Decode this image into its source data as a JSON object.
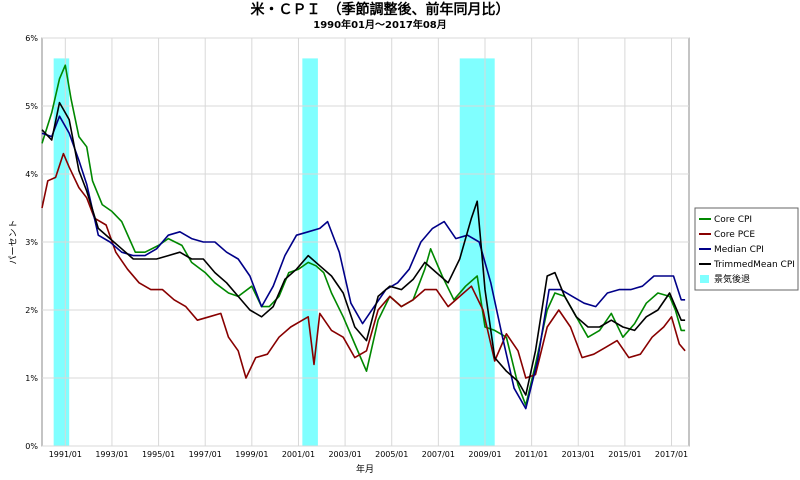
{
  "chart_data": {
    "type": "line",
    "title": "米・ＣＰＩ　（季節調整後、前年同月比）",
    "subtitle": "1990年01月～2017年08月",
    "xlabel": "年月",
    "ylabel": "パーセント",
    "xlim": [
      1990.0,
      2017.75
    ],
    "ylim": [
      0,
      6
    ],
    "yticks": [
      "0%",
      "1%",
      "2%",
      "3%",
      "4%",
      "5%",
      "6%"
    ],
    "xticks": [
      "1991/01",
      "1993/01",
      "1995/01",
      "1997/01",
      "1999/01",
      "2001/01",
      "2003/01",
      "2005/01",
      "2007/01",
      "2009/01",
      "2011/01",
      "2013/01",
      "2015/01",
      "2017/01"
    ],
    "grid": true,
    "legend_position": "right",
    "recessions": {
      "name": "景気後退",
      "color": "#80ffff",
      "periods": [
        [
          "1990/07",
          "1991/03"
        ],
        [
          "2001/03",
          "2001/11"
        ],
        [
          "2007/12",
          "2009/06"
        ]
      ]
    },
    "series": [
      {
        "name": "Core CPI",
        "color": "#008800",
        "points": [
          [
            "1990/01",
            4.45
          ],
          [
            "1990/06",
            4.9
          ],
          [
            "1990/10",
            5.4
          ],
          [
            "1991/01",
            5.6
          ],
          [
            "1991/04",
            5.1
          ],
          [
            "1991/08",
            4.55
          ],
          [
            "1991/12",
            4.4
          ],
          [
            "1992/03",
            3.9
          ],
          [
            "1992/08",
            3.55
          ],
          [
            "1993/01",
            3.45
          ],
          [
            "1993/06",
            3.3
          ],
          [
            "1994/01",
            2.85
          ],
          [
            "1994/06",
            2.85
          ],
          [
            "1995/01",
            2.95
          ],
          [
            "1995/06",
            3.05
          ],
          [
            "1996/01",
            2.95
          ],
          [
            "1996/06",
            2.7
          ],
          [
            "1997/01",
            2.55
          ],
          [
            "1997/06",
            2.4
          ],
          [
            "1998/01",
            2.25
          ],
          [
            "1998/06",
            2.2
          ],
          [
            "1999/01",
            2.35
          ],
          [
            "1999/06",
            2.05
          ],
          [
            "1999/10",
            2.05
          ],
          [
            "2000/03",
            2.2
          ],
          [
            "2000/08",
            2.55
          ],
          [
            "2001/01",
            2.6
          ],
          [
            "2001/06",
            2.7
          ],
          [
            "2001/10",
            2.65
          ],
          [
            "2002/02",
            2.55
          ],
          [
            "2002/06",
            2.25
          ],
          [
            "2002/12",
            1.9
          ],
          [
            "2003/06",
            1.5
          ],
          [
            "2003/12",
            1.1
          ],
          [
            "2004/06",
            1.85
          ],
          [
            "2004/12",
            2.2
          ],
          [
            "2005/06",
            2.05
          ],
          [
            "2005/12",
            2.15
          ],
          [
            "2006/06",
            2.6
          ],
          [
            "2006/09",
            2.9
          ],
          [
            "2007/03",
            2.5
          ],
          [
            "2007/09",
            2.15
          ],
          [
            "2008/03",
            2.35
          ],
          [
            "2008/09",
            2.5
          ],
          [
            "2009/01",
            1.75
          ],
          [
            "2009/06",
            1.7
          ],
          [
            "2009/12",
            1.6
          ],
          [
            "2010/06",
            0.9
          ],
          [
            "2010/10",
            0.6
          ],
          [
            "2011/03",
            1.2
          ],
          [
            "2011/09",
            2.0
          ],
          [
            "2012/01",
            2.25
          ],
          [
            "2012/06",
            2.2
          ],
          [
            "2012/12",
            1.9
          ],
          [
            "2013/06",
            1.6
          ],
          [
            "2013/12",
            1.7
          ],
          [
            "2014/06",
            1.95
          ],
          [
            "2014/12",
            1.6
          ],
          [
            "2015/06",
            1.8
          ],
          [
            "2015/12",
            2.1
          ],
          [
            "2016/06",
            2.25
          ],
          [
            "2016/12",
            2.2
          ],
          [
            "2017/03",
            2.0
          ],
          [
            "2017/06",
            1.7
          ],
          [
            "2017/08",
            1.7
          ]
        ]
      },
      {
        "name": "Core PCE",
        "color": "#880000",
        "points": [
          [
            "1990/01",
            3.5
          ],
          [
            "1990/04",
            3.9
          ],
          [
            "1990/08",
            3.95
          ],
          [
            "1990/12",
            4.3
          ],
          [
            "1991/03",
            4.1
          ],
          [
            "1991/08",
            3.8
          ],
          [
            "1991/12",
            3.65
          ],
          [
            "1992/04",
            3.35
          ],
          [
            "1992/10",
            3.25
          ],
          [
            "1993/03",
            2.85
          ],
          [
            "1993/09",
            2.6
          ],
          [
            "1994/03",
            2.4
          ],
          [
            "1994/09",
            2.3
          ],
          [
            "1995/03",
            2.3
          ],
          [
            "1995/09",
            2.15
          ],
          [
            "1996/03",
            2.05
          ],
          [
            "1996/09",
            1.85
          ],
          [
            "1997/03",
            1.9
          ],
          [
            "1997/09",
            1.95
          ],
          [
            "1998/01",
            1.6
          ],
          [
            "1998/06",
            1.4
          ],
          [
            "1998/10",
            1.0
          ],
          [
            "1999/03",
            1.3
          ],
          [
            "1999/09",
            1.35
          ],
          [
            "2000/03",
            1.6
          ],
          [
            "2000/09",
            1.75
          ],
          [
            "2001/03",
            1.85
          ],
          [
            "2001/06",
            1.9
          ],
          [
            "2001/09",
            1.2
          ],
          [
            "2001/12",
            1.95
          ],
          [
            "2002/06",
            1.7
          ],
          [
            "2002/12",
            1.6
          ],
          [
            "2003/06",
            1.3
          ],
          [
            "2003/12",
            1.4
          ],
          [
            "2004/06",
            2.0
          ],
          [
            "2004/12",
            2.2
          ],
          [
            "2005/06",
            2.05
          ],
          [
            "2005/12",
            2.15
          ],
          [
            "2006/06",
            2.3
          ],
          [
            "2006/12",
            2.3
          ],
          [
            "2007/06",
            2.05
          ],
          [
            "2007/12",
            2.2
          ],
          [
            "2008/06",
            2.35
          ],
          [
            "2008/12",
            2.0
          ],
          [
            "2009/06",
            1.25
          ],
          [
            "2009/12",
            1.65
          ],
          [
            "2010/06",
            1.4
          ],
          [
            "2010/10",
            1.0
          ],
          [
            "2011/03",
            1.05
          ],
          [
            "2011/09",
            1.75
          ],
          [
            "2012/03",
            2.0
          ],
          [
            "2012/09",
            1.75
          ],
          [
            "2013/03",
            1.3
          ],
          [
            "2013/09",
            1.35
          ],
          [
            "2014/03",
            1.45
          ],
          [
            "2014/09",
            1.55
          ],
          [
            "2015/03",
            1.3
          ],
          [
            "2015/09",
            1.35
          ],
          [
            "2016/03",
            1.6
          ],
          [
            "2016/09",
            1.75
          ],
          [
            "2017/01",
            1.9
          ],
          [
            "2017/05",
            1.5
          ],
          [
            "2017/08",
            1.4
          ]
        ]
      },
      {
        "name": "Median CPI",
        "color": "#000088",
        "points": [
          [
            "1990/01",
            4.6
          ],
          [
            "1990/06",
            4.55
          ],
          [
            "1990/10",
            4.85
          ],
          [
            "1991/03",
            4.6
          ],
          [
            "1991/08",
            4.2
          ],
          [
            "1991/12",
            3.85
          ],
          [
            "1992/06",
            3.1
          ],
          [
            "1992/12",
            3.0
          ],
          [
            "1993/06",
            2.85
          ],
          [
            "1993/12",
            2.8
          ],
          [
            "1994/06",
            2.8
          ],
          [
            "1994/12",
            2.9
          ],
          [
            "1995/06",
            3.1
          ],
          [
            "1995/12",
            3.15
          ],
          [
            "1996/06",
            3.05
          ],
          [
            "1996/12",
            3.0
          ],
          [
            "1997/06",
            3.0
          ],
          [
            "1997/12",
            2.85
          ],
          [
            "1998/06",
            2.75
          ],
          [
            "1998/12",
            2.5
          ],
          [
            "1999/06",
            2.05
          ],
          [
            "1999/12",
            2.35
          ],
          [
            "2000/06",
            2.8
          ],
          [
            "2000/12",
            3.1
          ],
          [
            "2001/06",
            3.15
          ],
          [
            "2001/12",
            3.2
          ],
          [
            "2002/04",
            3.3
          ],
          [
            "2002/10",
            2.85
          ],
          [
            "2003/04",
            2.1
          ],
          [
            "2003/10",
            1.8
          ],
          [
            "2004/04",
            2.05
          ],
          [
            "2004/10",
            2.3
          ],
          [
            "2005/04",
            2.4
          ],
          [
            "2005/10",
            2.6
          ],
          [
            "2006/04",
            3.0
          ],
          [
            "2006/10",
            3.2
          ],
          [
            "2007/04",
            3.3
          ],
          [
            "2007/10",
            3.05
          ],
          [
            "2008/04",
            3.1
          ],
          [
            "2008/10",
            3.0
          ],
          [
            "2009/04",
            2.4
          ],
          [
            "2009/10",
            1.6
          ],
          [
            "2010/04",
            0.85
          ],
          [
            "2010/10",
            0.55
          ],
          [
            "2011/04",
            1.25
          ],
          [
            "2011/10",
            2.3
          ],
          [
            "2012/04",
            2.3
          ],
          [
            "2012/10",
            2.2
          ],
          [
            "2013/04",
            2.1
          ],
          [
            "2013/10",
            2.05
          ],
          [
            "2014/04",
            2.25
          ],
          [
            "2014/10",
            2.3
          ],
          [
            "2015/04",
            2.3
          ],
          [
            "2015/10",
            2.35
          ],
          [
            "2016/04",
            2.5
          ],
          [
            "2016/10",
            2.5
          ],
          [
            "2017/02",
            2.5
          ],
          [
            "2017/06",
            2.15
          ],
          [
            "2017/08",
            2.15
          ]
        ]
      },
      {
        "name": "TrimmedMean CPI",
        "color": "#000000",
        "points": [
          [
            "1990/01",
            4.65
          ],
          [
            "1990/06",
            4.5
          ],
          [
            "1990/10",
            5.05
          ],
          [
            "1991/03",
            4.8
          ],
          [
            "1991/08",
            4.05
          ],
          [
            "1991/12",
            3.75
          ],
          [
            "1992/06",
            3.2
          ],
          [
            "1992/12",
            3.05
          ],
          [
            "1993/06",
            2.9
          ],
          [
            "1993/12",
            2.75
          ],
          [
            "1994/06",
            2.75
          ],
          [
            "1994/12",
            2.75
          ],
          [
            "1995/06",
            2.8
          ],
          [
            "1995/12",
            2.85
          ],
          [
            "1996/06",
            2.75
          ],
          [
            "1996/12",
            2.75
          ],
          [
            "1997/06",
            2.55
          ],
          [
            "1997/12",
            2.4
          ],
          [
            "1998/06",
            2.2
          ],
          [
            "1998/12",
            2.0
          ],
          [
            "1999/06",
            1.9
          ],
          [
            "1999/12",
            2.05
          ],
          [
            "2000/06",
            2.45
          ],
          [
            "2000/12",
            2.6
          ],
          [
            "2001/06",
            2.8
          ],
          [
            "2001/12",
            2.65
          ],
          [
            "2002/06",
            2.5
          ],
          [
            "2002/12",
            2.25
          ],
          [
            "2003/06",
            1.75
          ],
          [
            "2003/12",
            1.55
          ],
          [
            "2004/06",
            2.2
          ],
          [
            "2004/12",
            2.35
          ],
          [
            "2005/06",
            2.3
          ],
          [
            "2005/12",
            2.45
          ],
          [
            "2006/06",
            2.7
          ],
          [
            "2006/12",
            2.55
          ],
          [
            "2007/06",
            2.4
          ],
          [
            "2007/12",
            2.75
          ],
          [
            "2008/06",
            3.35
          ],
          [
            "2008/09",
            3.6
          ],
          [
            "2009/01",
            2.3
          ],
          [
            "2009/06",
            1.3
          ],
          [
            "2009/12",
            1.1
          ],
          [
            "2010/06",
            0.95
          ],
          [
            "2010/10",
            0.75
          ],
          [
            "2011/03",
            1.4
          ],
          [
            "2011/09",
            2.5
          ],
          [
            "2012/01",
            2.55
          ],
          [
            "2012/06",
            2.2
          ],
          [
            "2012/12",
            1.9
          ],
          [
            "2013/06",
            1.75
          ],
          [
            "2013/12",
            1.75
          ],
          [
            "2014/06",
            1.85
          ],
          [
            "2014/12",
            1.75
          ],
          [
            "2015/06",
            1.7
          ],
          [
            "2015/12",
            1.9
          ],
          [
            "2016/06",
            2.0
          ],
          [
            "2016/12",
            2.25
          ],
          [
            "2017/03",
            2.05
          ],
          [
            "2017/06",
            1.85
          ],
          [
            "2017/08",
            1.85
          ]
        ]
      }
    ]
  }
}
